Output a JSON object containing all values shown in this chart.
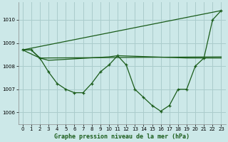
{
  "bg_color": "#cce8e8",
  "grid_color": "#aacccc",
  "line_color": "#1a5c1a",
  "title": "Graphe pression niveau de la mer (hPa)",
  "xlim": [
    -0.5,
    23.5
  ],
  "ylim": [
    1005.5,
    1010.75
  ],
  "yticks": [
    1006,
    1007,
    1008,
    1009,
    1010
  ],
  "xticks": [
    0,
    1,
    2,
    3,
    4,
    5,
    6,
    7,
    8,
    9,
    10,
    11,
    12,
    13,
    14,
    15,
    16,
    17,
    18,
    19,
    20,
    21,
    22,
    23
  ],
  "series_wavy": {
    "x": [
      0,
      1,
      2,
      3,
      4,
      5,
      6,
      7,
      8,
      9,
      10,
      11,
      12,
      13,
      14,
      15,
      16,
      17,
      18,
      19,
      20,
      21,
      22,
      23
    ],
    "y": [
      1008.7,
      1008.7,
      1008.35,
      1007.75,
      1007.25,
      1007.0,
      1006.85,
      1006.85,
      1007.25,
      1007.75,
      1008.05,
      1008.45,
      1008.05,
      1007.0,
      1006.65,
      1006.3,
      1006.05,
      1006.3,
      1007.0,
      1007.0,
      1008.0,
      1008.35,
      1010.0,
      1010.4
    ]
  },
  "series_flat": {
    "x": [
      0,
      2,
      23
    ],
    "y": [
      1008.7,
      1008.35,
      1008.4
    ]
  },
  "series_diagonal": {
    "x": [
      0,
      23
    ],
    "y": [
      1008.7,
      1010.4
    ]
  },
  "series_mid": {
    "x": [
      0,
      1,
      2,
      3,
      10,
      11,
      19,
      20,
      23
    ],
    "y": [
      1008.7,
      1008.7,
      1008.35,
      1008.25,
      1008.4,
      1008.45,
      1008.35,
      1008.35,
      1008.35
    ]
  }
}
